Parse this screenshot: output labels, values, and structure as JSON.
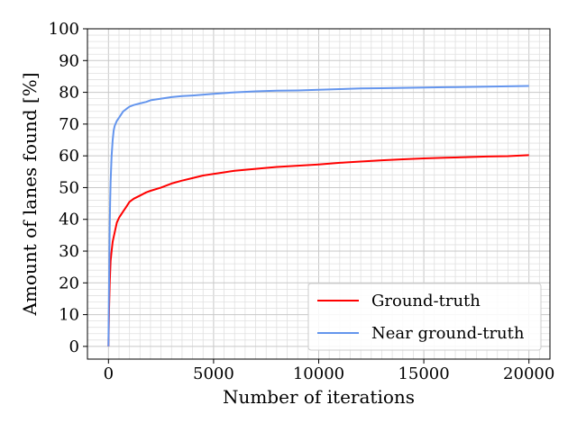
{
  "chart_data": {
    "type": "line",
    "title": "",
    "xlabel": "Number of iterations",
    "ylabel": "Amount of lanes found [%]",
    "xlim": [
      -1000,
      21000
    ],
    "ylim": [
      -4,
      100
    ],
    "xticks": [
      0,
      5000,
      10000,
      15000,
      20000
    ],
    "yticks": [
      0,
      10,
      20,
      30,
      40,
      50,
      60,
      70,
      80,
      90,
      100
    ],
    "x_minor_step": 500,
    "y_minor_step": 2,
    "grid": true,
    "legend_position": "lower right",
    "series": [
      {
        "name": "Ground-truth",
        "color": "#ff0000",
        "x": [
          0,
          30,
          60,
          100,
          150,
          200,
          300,
          400,
          500,
          600,
          700,
          800,
          900,
          1000,
          1200,
          1500,
          1800,
          2000,
          2500,
          3000,
          3500,
          4000,
          4500,
          5000,
          5500,
          6000,
          7000,
          8000,
          9000,
          10000,
          11000,
          12000,
          13000,
          14000,
          15000,
          16000,
          17000,
          18000,
          19000,
          20000
        ],
        "values": [
          0,
          12,
          20,
          27,
          30,
          33,
          36,
          39,
          40.5,
          41.5,
          42.5,
          43.5,
          44.5,
          45.5,
          46.5,
          47.5,
          48.5,
          49,
          50,
          51.3,
          52.2,
          53,
          53.8,
          54.3,
          54.8,
          55.3,
          55.9,
          56.5,
          56.9,
          57.3,
          57.8,
          58.2,
          58.6,
          58.9,
          59.2,
          59.4,
          59.6,
          59.8,
          59.9,
          60.2
        ]
      },
      {
        "name": "Near ground-truth",
        "color": "#6495ed",
        "x": [
          0,
          20,
          40,
          60,
          80,
          100,
          150,
          200,
          250,
          300,
          400,
          500,
          600,
          700,
          800,
          900,
          1000,
          1200,
          1500,
          1800,
          2000,
          2500,
          3000,
          3500,
          4000,
          5000,
          6000,
          7000,
          8000,
          9000,
          10000,
          11000,
          12000,
          13000,
          14000,
          15000,
          16000,
          17000,
          18000,
          19000,
          20000
        ],
        "values": [
          0,
          15,
          28,
          38,
          46,
          52,
          60,
          65,
          68,
          69.5,
          71,
          72,
          73,
          74,
          74.5,
          75,
          75.5,
          76,
          76.5,
          77,
          77.5,
          78,
          78.5,
          78.8,
          79,
          79.5,
          80,
          80.3,
          80.5,
          80.6,
          80.8,
          81,
          81.2,
          81.3,
          81.4,
          81.5,
          81.6,
          81.7,
          81.8,
          81.9,
          82
        ]
      }
    ]
  }
}
